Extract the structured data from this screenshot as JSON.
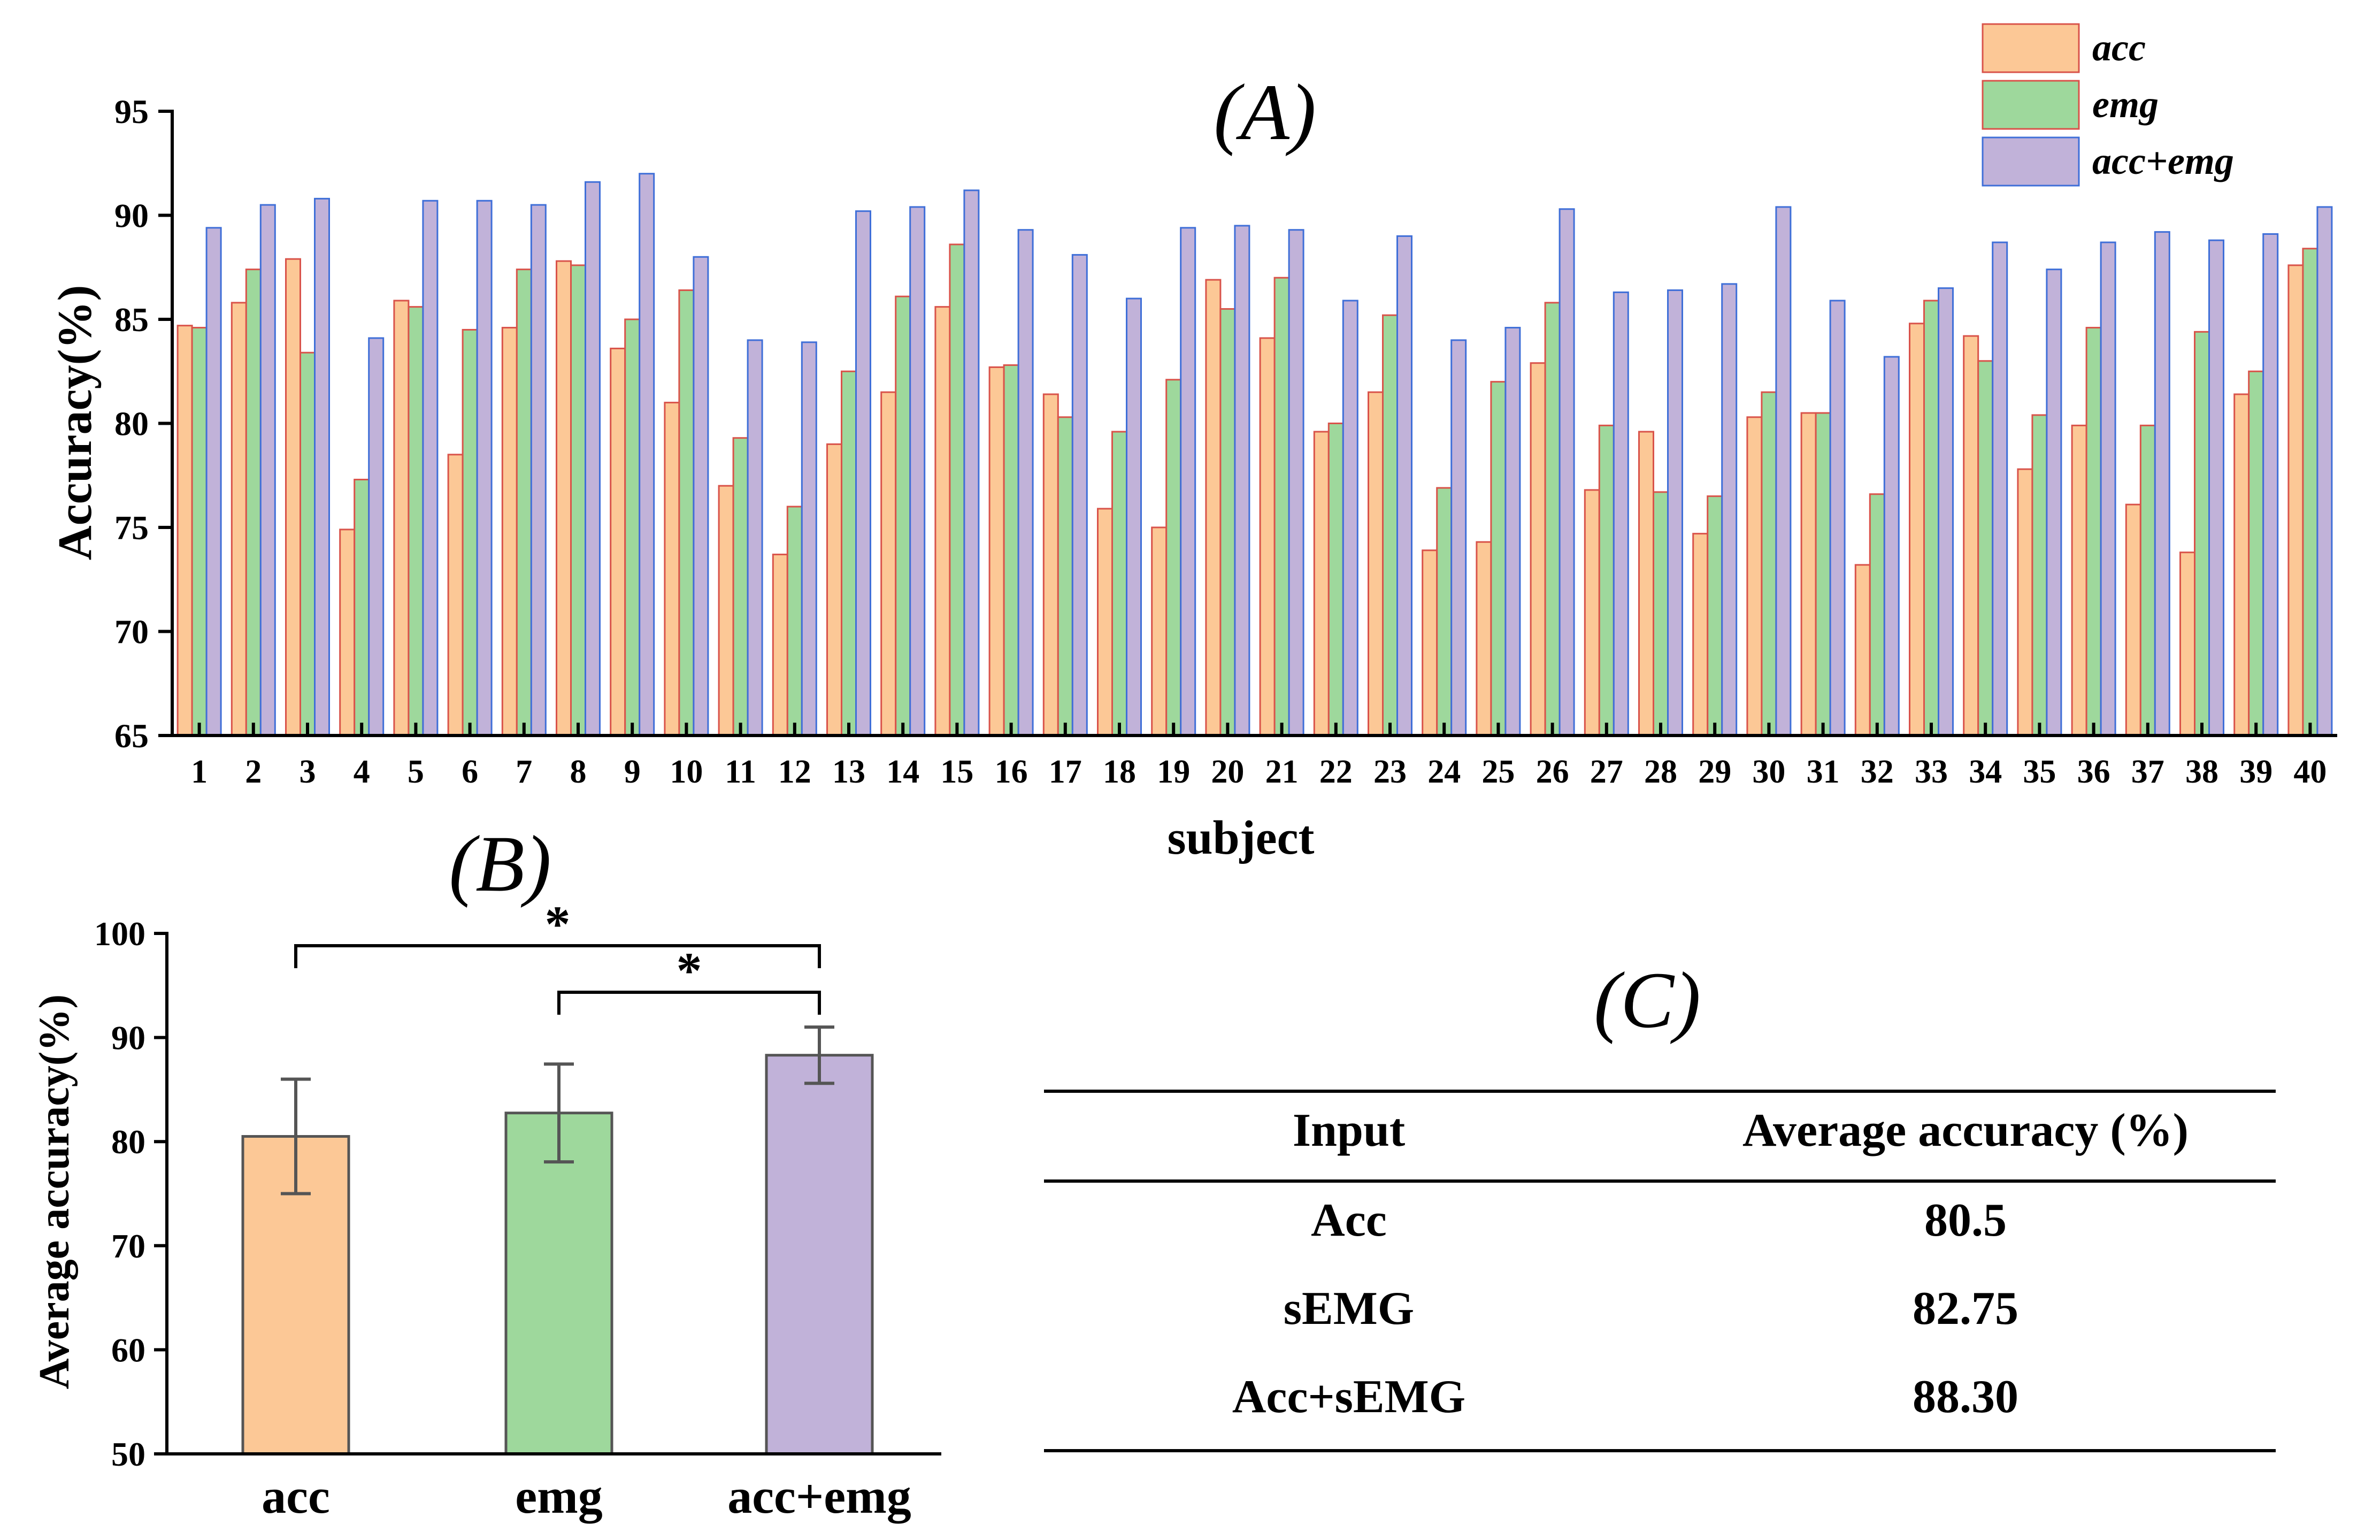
{
  "chart_data": [
    {
      "panel": "(A)",
      "type": "bar",
      "title": "(A)",
      "xlabel": "subject",
      "ylabel": "Accuracy(%)",
      "ylim": [
        65,
        95
      ],
      "yticks": [
        65,
        70,
        75,
        80,
        85,
        90,
        95
      ],
      "categories": [
        "1",
        "2",
        "3",
        "4",
        "5",
        "6",
        "7",
        "8",
        "9",
        "10",
        "11",
        "12",
        "13",
        "14",
        "15",
        "16",
        "17",
        "18",
        "19",
        "20",
        "21",
        "22",
        "23",
        "24",
        "25",
        "26",
        "27",
        "28",
        "29",
        "30",
        "31",
        "32",
        "33",
        "34",
        "35",
        "36",
        "37",
        "38",
        "39",
        "40"
      ],
      "legend_position": "top-right",
      "series": [
        {
          "name": "acc",
          "color": "#fcc896",
          "edge": "#d9534a",
          "values": [
            84.7,
            85.8,
            87.9,
            74.9,
            85.9,
            78.5,
            84.6,
            87.8,
            83.6,
            81.0,
            77.0,
            73.7,
            79.0,
            81.5,
            85.6,
            82.7,
            81.4,
            75.9,
            75.0,
            86.9,
            84.1,
            79.6,
            81.5,
            73.9,
            74.3,
            82.9,
            76.8,
            79.6,
            74.7,
            80.3,
            80.5,
            73.2,
            84.8,
            84.2,
            77.8,
            79.9,
            76.1,
            73.8,
            81.4,
            87.6
          ]
        },
        {
          "name": "emg",
          "color": "#9ed89c",
          "edge": "#d9534a",
          "values": [
            84.6,
            87.4,
            83.4,
            77.3,
            85.6,
            84.5,
            87.4,
            87.6,
            85.0,
            86.4,
            79.3,
            76.0,
            82.5,
            86.1,
            88.6,
            82.8,
            80.3,
            79.6,
            82.1,
            85.5,
            87.0,
            80.0,
            85.2,
            76.9,
            82.0,
            85.8,
            79.9,
            76.7,
            76.5,
            81.5,
            80.5,
            76.6,
            85.9,
            83.0,
            80.4,
            84.6,
            79.9,
            84.4,
            82.5,
            88.4
          ]
        },
        {
          "name": "acc+emg",
          "color": "#c1b2d9",
          "edge": "#3f6fd8",
          "values": [
            89.4,
            90.5,
            90.8,
            84.1,
            90.7,
            90.7,
            90.5,
            91.6,
            92.0,
            88.0,
            84.0,
            83.9,
            90.2,
            90.4,
            91.2,
            89.3,
            88.1,
            86.0,
            89.4,
            89.5,
            89.3,
            85.9,
            89.0,
            84.0,
            84.6,
            90.3,
            86.3,
            86.4,
            86.7,
            90.4,
            85.9,
            83.2,
            86.5,
            88.7,
            87.4,
            88.7,
            89.2,
            88.8,
            89.1,
            90.4
          ]
        }
      ]
    },
    {
      "panel": "(B)",
      "type": "bar",
      "title": "(B)",
      "xlabel": "",
      "ylabel": "Average accuracy(%)",
      "ylim": [
        50,
        100
      ],
      "yticks": [
        50,
        60,
        70,
        80,
        90,
        100
      ],
      "categories": [
        "acc",
        "emg",
        "acc+emg"
      ],
      "values": [
        80.5,
        82.75,
        88.3
      ],
      "errors": [
        5.5,
        4.7,
        2.7
      ],
      "colors": [
        "#fcc896",
        "#9ed89c",
        "#c1b2d9"
      ],
      "significance": [
        {
          "from": 0,
          "to": 2,
          "label": "*"
        },
        {
          "from": 1,
          "to": 2,
          "label": "*"
        }
      ]
    },
    {
      "panel": "(C)",
      "type": "table",
      "title": "(C)",
      "columns": [
        "Input",
        "Average accuracy (%)"
      ],
      "rows": [
        [
          "Acc",
          "80.5"
        ],
        [
          "sEMG",
          "82.75"
        ],
        [
          "Acc+sEMG",
          "88.30"
        ]
      ]
    }
  ]
}
